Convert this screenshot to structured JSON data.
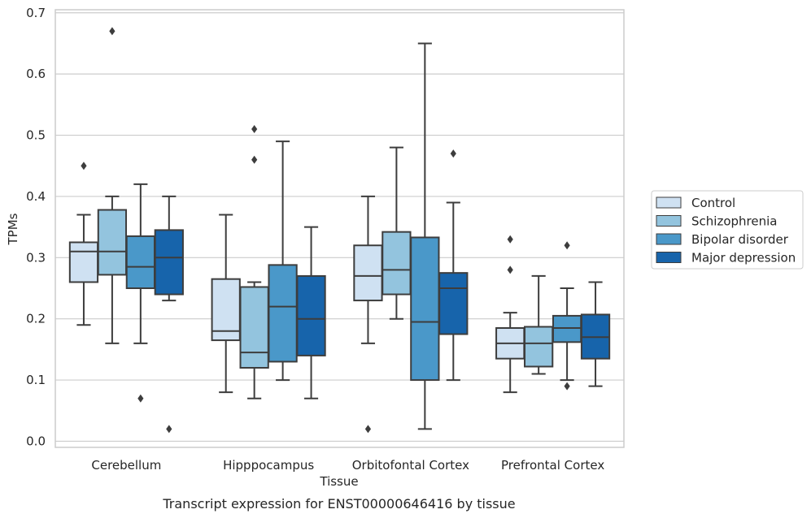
{
  "chart_data": {
    "type": "boxplot",
    "caption": "Transcript expression for ENST00000646416 by tissue",
    "xlabel": "Tissue",
    "ylabel": "TPMs",
    "ylim": [
      -0.01,
      0.705
    ],
    "yticks": [
      0.0,
      0.1,
      0.2,
      0.3,
      0.4,
      0.5,
      0.6,
      0.7
    ],
    "yticklabels": [
      "0.0",
      "0.1",
      "0.2",
      "0.3",
      "0.4",
      "0.5",
      "0.6",
      "0.7"
    ],
    "grid": "horizontal",
    "legend_position": "right",
    "categories": [
      "Cerebellum",
      "Hipppocampus",
      "Orbitofontal Cortex",
      "Prefrontal Cortex"
    ],
    "series": [
      {
        "name": "Control",
        "color": "#cfe1f2",
        "boxes": [
          {
            "whisker_low": 0.19,
            "q1": 0.26,
            "median": 0.31,
            "q3": 0.325,
            "whisker_high": 0.37,
            "outliers": [
              0.45
            ]
          },
          {
            "whisker_low": 0.08,
            "q1": 0.165,
            "median": 0.18,
            "q3": 0.265,
            "whisker_high": 0.37,
            "outliers": []
          },
          {
            "whisker_low": 0.16,
            "q1": 0.23,
            "median": 0.27,
            "q3": 0.32,
            "whisker_high": 0.4,
            "outliers": [
              0.02
            ]
          },
          {
            "whisker_low": 0.08,
            "q1": 0.135,
            "median": 0.16,
            "q3": 0.185,
            "whisker_high": 0.21,
            "outliers": [
              0.28,
              0.33
            ]
          }
        ]
      },
      {
        "name": "Schizophrenia",
        "color": "#93c4de",
        "boxes": [
          {
            "whisker_low": 0.16,
            "q1": 0.272,
            "median": 0.31,
            "q3": 0.378,
            "whisker_high": 0.4,
            "outliers": [
              0.67
            ]
          },
          {
            "whisker_low": 0.07,
            "q1": 0.12,
            "median": 0.145,
            "q3": 0.252,
            "whisker_high": 0.26,
            "outliers": [
              0.46,
              0.51
            ]
          },
          {
            "whisker_low": 0.2,
            "q1": 0.24,
            "median": 0.28,
            "q3": 0.342,
            "whisker_high": 0.48,
            "outliers": []
          },
          {
            "whisker_low": 0.11,
            "q1": 0.122,
            "median": 0.16,
            "q3": 0.187,
            "whisker_high": 0.27,
            "outliers": []
          }
        ]
      },
      {
        "name": "Bipolar disorder",
        "color": "#4a98c9",
        "boxes": [
          {
            "whisker_low": 0.16,
            "q1": 0.25,
            "median": 0.285,
            "q3": 0.335,
            "whisker_high": 0.42,
            "outliers": [
              0.07
            ]
          },
          {
            "whisker_low": 0.1,
            "q1": 0.13,
            "median": 0.22,
            "q3": 0.288,
            "whisker_high": 0.49,
            "outliers": []
          },
          {
            "whisker_low": 0.02,
            "q1": 0.1,
            "median": 0.195,
            "q3": 0.333,
            "whisker_high": 0.65,
            "outliers": []
          },
          {
            "whisker_low": 0.1,
            "q1": 0.162,
            "median": 0.185,
            "q3": 0.205,
            "whisker_high": 0.25,
            "outliers": [
              0.09,
              0.32
            ]
          }
        ]
      },
      {
        "name": "Major depression",
        "color": "#1764ab",
        "boxes": [
          {
            "whisker_low": 0.23,
            "q1": 0.24,
            "median": 0.3,
            "q3": 0.345,
            "whisker_high": 0.4,
            "outliers": [
              0.02
            ]
          },
          {
            "whisker_low": 0.07,
            "q1": 0.14,
            "median": 0.2,
            "q3": 0.27,
            "whisker_high": 0.35,
            "outliers": []
          },
          {
            "whisker_low": 0.1,
            "q1": 0.175,
            "median": 0.25,
            "q3": 0.275,
            "whisker_high": 0.39,
            "outliers": [
              0.47
            ]
          },
          {
            "whisker_low": 0.09,
            "q1": 0.135,
            "median": 0.17,
            "q3": 0.207,
            "whisker_high": 0.26,
            "outliers": []
          }
        ]
      }
    ]
  }
}
